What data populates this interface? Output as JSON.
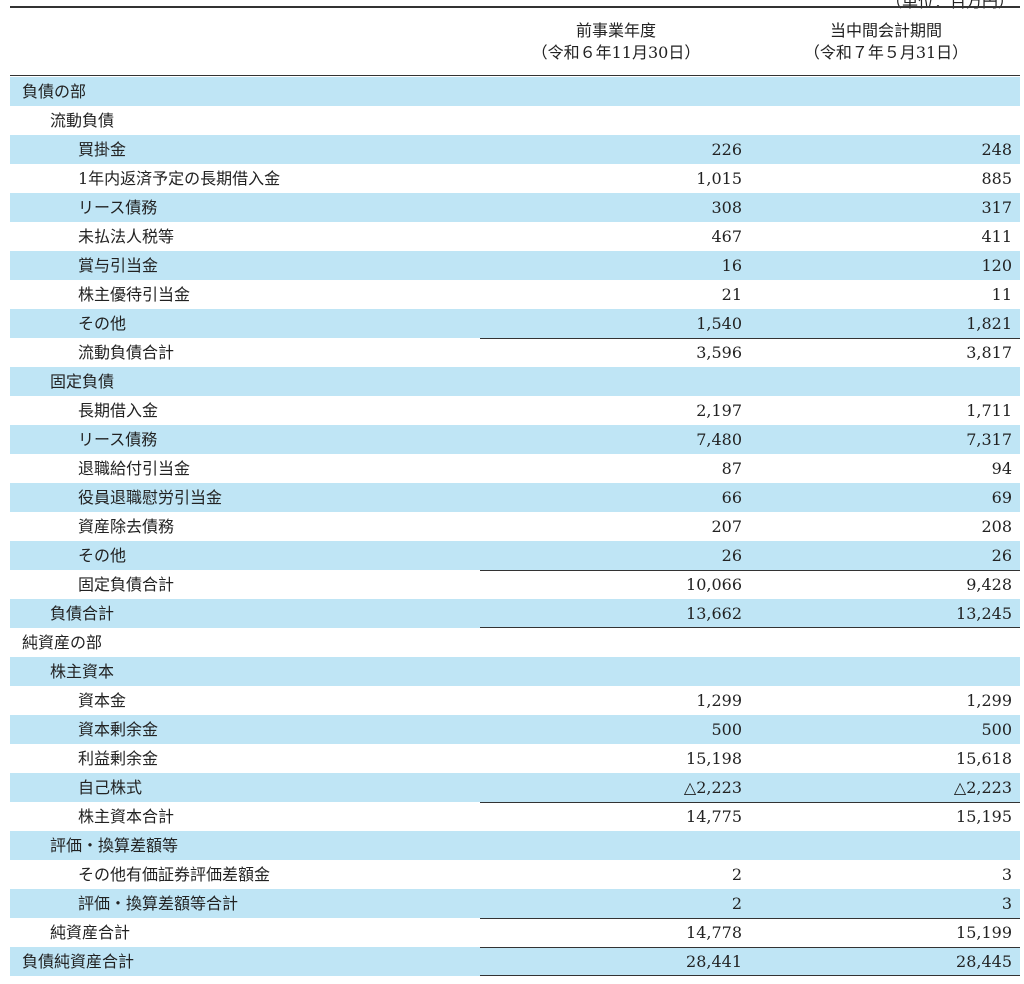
{
  "header": {
    "unit": "（単位：百万円）",
    "col1": [
      "前事業年度",
      "（令和６年11月30日）"
    ],
    "col2": [
      "当中間会計期間",
      "（令和７年５月31日）"
    ]
  },
  "table": {
    "rows": [
      [
        "負債の部"
      ],
      [
        "流動負債"
      ],
      [
        "買掛金",
        "226",
        "248"
      ],
      [
        "1年内返済予定の長期借入金",
        "1,015",
        "885"
      ],
      [
        "リース債務",
        "308",
        "317"
      ],
      [
        "未払法人税等",
        "467",
        "411"
      ],
      [
        "賞与引当金",
        "16",
        "120"
      ],
      [
        "株主優待引当金",
        "21",
        "11"
      ],
      [
        "その他",
        "1,540",
        "1,821"
      ],
      [
        "流動負債合計",
        "3,596",
        "3,817"
      ],
      [
        "固定負債"
      ],
      [
        "長期借入金",
        "2,197",
        "1,711"
      ],
      [
        "リース債務",
        "7,480",
        "7,317"
      ],
      [
        "退職給付引当金",
        "87",
        "94"
      ],
      [
        "役員退職慰労引当金",
        "66",
        "69"
      ],
      [
        "資産除去債務",
        "207",
        "208"
      ],
      [
        "その他",
        "26",
        "26"
      ],
      [
        "固定負債合計",
        "10,066",
        "9,428"
      ],
      [
        "負債合計",
        "13,662",
        "13,245"
      ],
      [
        "純資産の部"
      ],
      [
        "株主資本"
      ],
      [
        "資本金",
        "1,299",
        "1,299"
      ],
      [
        "資本剰余金",
        "500",
        "500"
      ],
      [
        "利益剰余金",
        "15,198",
        "15,618"
      ],
      [
        "自己株式",
        "△2,223",
        "△2,223"
      ],
      [
        "株主資本合計",
        "14,775",
        "15,195"
      ],
      [
        "評価・換算差額等"
      ],
      [
        "その他有価証券評価差額金",
        "2",
        "3"
      ],
      [
        "評価・換算差額等合計",
        "2",
        "3"
      ],
      [
        "純資産合計",
        "14,778",
        "15,199"
      ],
      [
        "負債純資産合計",
        "28,441",
        "28,445"
      ]
    ]
  }
}
